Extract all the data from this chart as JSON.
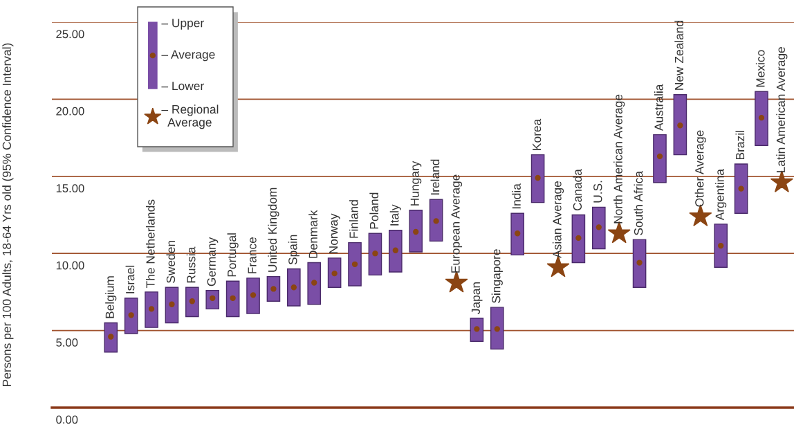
{
  "chart_data": {
    "type": "bar",
    "ylabel": "Persons per 100 Adults, 18-64 Yrs old (95% Confidence Interval)",
    "categories": [
      "Belgium",
      "Israel",
      "The Netherlands",
      "Sweden",
      "Russia",
      "Germany",
      "Portugal",
      "France",
      "United Kingdom",
      "Spain",
      "Denmark",
      "Norway",
      "Finland",
      "Poland",
      "Italy",
      "Hungary",
      "Ireland",
      "European Average",
      "Japan",
      "Singapore",
      "India",
      "Korea",
      "Asian Average",
      "Canada",
      "U.S.",
      "North American Average",
      "South Africa",
      "Australia",
      "New Zealand",
      "Other Average",
      "Argentina",
      "Brazil",
      "Mexico",
      "Latin American Average"
    ],
    "series": [
      {
        "color": "#7a4ea6",
        "base": [
          3.6,
          4.8,
          5.2,
          5.5,
          5.9,
          6.4,
          5.9,
          6.1,
          6.9,
          6.6,
          6.7,
          7.8,
          7.9,
          8.6,
          8.8,
          10.1,
          10.8,
          null,
          4.3,
          3.8,
          9.9,
          13.3,
          null,
          9.4,
          10.3,
          null,
          7.8,
          14.6,
          16.4,
          null,
          9.1,
          12.6,
          17.0,
          null
        ],
        "values": [
          1.9,
          2.3,
          2.3,
          2.3,
          1.9,
          1.2,
          2.3,
          2.3,
          1.6,
          2.4,
          2.7,
          1.9,
          2.8,
          2.7,
          2.7,
          2.7,
          2.7,
          null,
          1.5,
          2.7,
          2.7,
          3.1,
          null,
          3.1,
          2.7,
          null,
          3.1,
          3.1,
          3.9,
          null,
          2.8,
          3.2,
          3.5,
          null
        ]
      },
      {
        "type": "scatter",
        "name": "– Average",
        "color": "#8b4513",
        "marker": "circle",
        "values": [
          4.6,
          6.0,
          6.4,
          6.7,
          6.9,
          7.1,
          7.1,
          7.3,
          7.7,
          7.8,
          8.1,
          8.7,
          9.3,
          10.0,
          10.2,
          11.4,
          12.1,
          null,
          5.1,
          5.1,
          11.3,
          14.9,
          null,
          11.0,
          11.7,
          null,
          9.4,
          16.3,
          18.3,
          null,
          10.5,
          14.2,
          18.8,
          null
        ]
      },
      {
        "type": "scatter",
        "name": "– Regional Average",
        "color": "#8b4513",
        "marker": "star",
        "values": [
          null,
          null,
          null,
          null,
          null,
          null,
          null,
          null,
          null,
          null,
          null,
          null,
          null,
          null,
          null,
          null,
          null,
          8.1,
          null,
          null,
          null,
          null,
          9.1,
          null,
          null,
          11.3,
          null,
          null,
          null,
          12.4,
          null,
          null,
          null,
          14.6
        ]
      }
    ],
    "annotations": [
      "– Upper",
      "– Lower"
    ],
    "ylim": [
      0,
      25
    ],
    "yticks": [
      {
        "value": 0,
        "label": "0.00"
      },
      {
        "value": 5,
        "label": "5.00"
      },
      {
        "value": 10,
        "label": "10.00"
      },
      {
        "value": 15,
        "label": "15.00"
      },
      {
        "value": 20,
        "label": "20.00"
      },
      {
        "value": 25,
        "label": "25.00"
      }
    ],
    "grid": "y",
    "legend": "top left"
  }
}
